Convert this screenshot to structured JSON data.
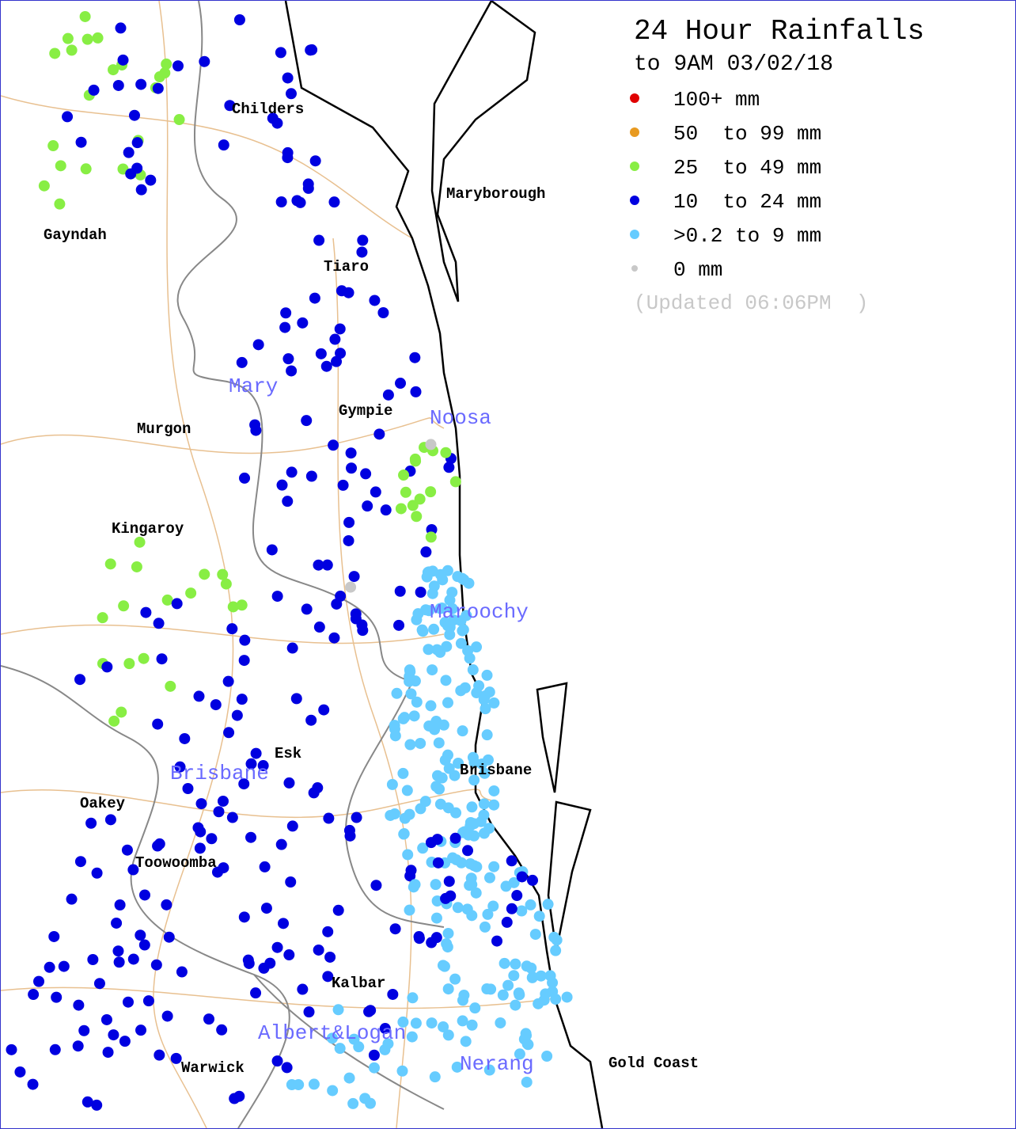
{
  "title": "24 Hour Rainfalls",
  "subtitle": "to 9AM 03/02/18",
  "legend": [
    {
      "label": "100+ mm",
      "color": "#e00000"
    },
    {
      "label": "50  to 99 mm",
      "color": "#e89a20"
    },
    {
      "label": "25  to 49 mm",
      "color": "#88ee44"
    },
    {
      "label": "10  to 24 mm",
      "color": "#0000e0"
    },
    {
      "label": ">0.2 to 9 mm",
      "color": "#66ccff"
    },
    {
      "label": "0 mm",
      "color": "#c8c8c8"
    }
  ],
  "updated": "(Updated 06:06PM  )",
  "towns": [
    "Childers",
    "Maryborough",
    "Gayndah",
    "Tiaro",
    "Gympie",
    "Murgon",
    "Kingaroy",
    "Esk",
    "Brisbane",
    "Oakey",
    "Toowoomba",
    "Kalbar",
    "Warwick",
    "Gold Coast"
  ],
  "regions": [
    "Mary",
    "Noosa",
    "Maroochy",
    "Brisbane",
    "Albert&Logan",
    "Nerang"
  ]
}
